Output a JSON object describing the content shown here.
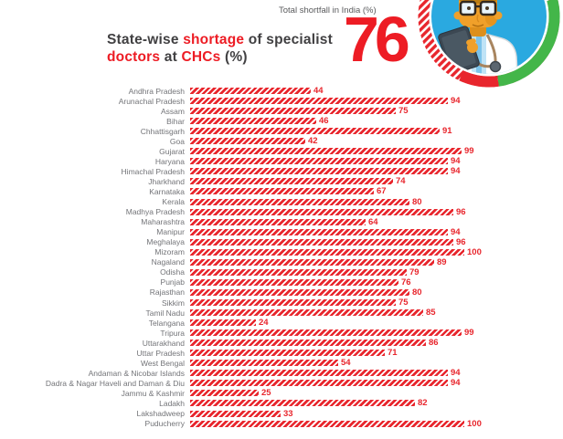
{
  "header": {
    "total_label": "Total shortfall in India (%)",
    "total_value": "76",
    "title_lines": [
      {
        "segments": [
          {
            "text": "State-wise ",
            "accent": false
          },
          {
            "text": "shortage",
            "accent": true
          },
          {
            "text": " of specialist",
            "accent": false
          }
        ]
      },
      {
        "segments": [
          {
            "text": "doctors",
            "accent": true
          },
          {
            "text": " at ",
            "accent": false
          },
          {
            "text": "CHCs",
            "accent": true
          },
          {
            "text": " (%)",
            "accent": false
          }
        ]
      }
    ]
  },
  "badge": {
    "icon": "doctor-with-tablet-illustration"
  },
  "chart_data": {
    "type": "bar",
    "orientation": "horizontal",
    "title": "State-wise shortage of specialist doctors at CHCs (%)",
    "annotation": {
      "label": "Total shortfall in India (%)",
      "value": 76
    },
    "xlim": [
      0,
      100
    ],
    "grid": false,
    "bar_pattern": "diagonal-hatch",
    "categories": [
      "Andhra Pradesh",
      "Arunachal Pradesh",
      "Assam",
      "Bihar",
      "Chhattisgarh",
      "Goa",
      "Gujarat",
      "Haryana",
      "Himachal Pradesh",
      "Jharkhand",
      "Karnataka",
      "Kerala",
      "Madhya Pradesh",
      "Maharashtra",
      "Manipur",
      "Meghalaya",
      "Mizoram",
      "Nagaland",
      "Odisha",
      "Punjab",
      "Rajasthan",
      "Sikkim",
      "Tamil Nadu",
      "Telangana",
      "Tripura",
      "Uttarakhand",
      "Uttar Pradesh",
      "West Bengal",
      "Andaman & Nicobar Islands",
      "Dadra & Nagar Haveli and Daman & Diu",
      "Jammu & Kashmir",
      "Ladakh",
      "Lakshadweep",
      "Puducherry"
    ],
    "values": [
      44,
      94,
      75,
      46,
      91,
      42,
      99,
      94,
      94,
      74,
      67,
      80,
      96,
      64,
      94,
      96,
      100,
      89,
      79,
      76,
      80,
      75,
      85,
      24,
      99,
      86,
      71,
      54,
      94,
      94,
      25,
      82,
      33,
      100
    ]
  },
  "colors": {
    "bar_red": "#e8262d",
    "accent_red": "#ed1c24",
    "title_dark": "#414042",
    "label_gray": "#737478",
    "badge_green": "#43b649",
    "badge_blue": "#2aa9e0"
  }
}
